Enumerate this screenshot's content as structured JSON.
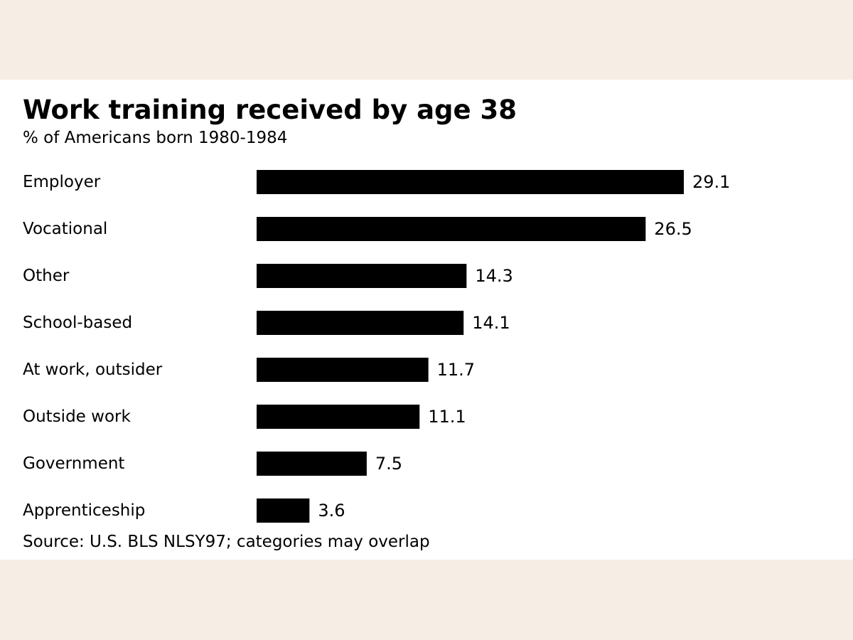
{
  "chart_data": {
    "type": "bar",
    "orientation": "horizontal",
    "title": "Work training received by age 38",
    "subtitle": "% of Americans born 1980-1984",
    "source": "Source: U.S. BLS NLSY97; categories may overlap",
    "categories": [
      "Employer",
      "Vocational",
      "Other",
      "School-based",
      "At work, outsider",
      "Outside work",
      "Government",
      "Apprenticeship"
    ],
    "values": [
      29.1,
      26.5,
      14.3,
      14.1,
      11.7,
      11.1,
      7.5,
      3.6
    ],
    "value_labels": [
      "29.1",
      "26.5",
      "14.3",
      "14.1",
      "11.7",
      "11.1",
      "7.5",
      "3.6"
    ],
    "xlim": [
      0,
      29.1
    ],
    "grid": false,
    "legend": "none",
    "bar_color": "#000000"
  }
}
